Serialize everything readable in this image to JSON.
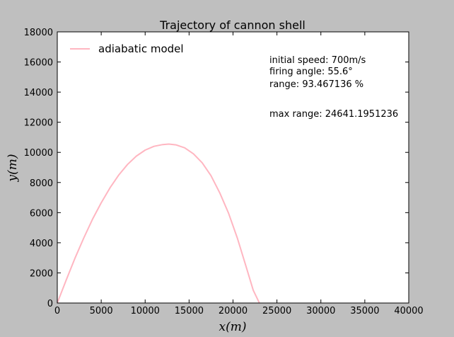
{
  "chart_data": {
    "type": "line",
    "title": "Trajectory of cannon shell",
    "xlabel": "x(m)",
    "ylabel": "y(m)",
    "xlim": [
      0,
      40000
    ],
    "ylim": [
      0,
      18000
    ],
    "xticks": [
      0,
      5000,
      10000,
      15000,
      20000,
      25000,
      30000,
      35000,
      40000
    ],
    "yticks": [
      0,
      2000,
      4000,
      6000,
      8000,
      10000,
      12000,
      14000,
      16000,
      18000
    ],
    "grid": false,
    "legend_position": "top-left",
    "series": [
      {
        "name": "adiabatic model",
        "color": "#ffb6c1",
        "x": [
          0,
          1000,
          2000,
          3000,
          4000,
          5000,
          6000,
          7000,
          8000,
          9000,
          10000,
          11000,
          12000,
          12700,
          13500,
          14500,
          15500,
          16500,
          17500,
          18500,
          19500,
          20500,
          21500,
          22300,
          23000
        ],
        "y": [
          0,
          1500,
          2950,
          4300,
          5550,
          6650,
          7650,
          8500,
          9200,
          9750,
          10150,
          10400,
          10520,
          10550,
          10500,
          10300,
          9900,
          9300,
          8450,
          7300,
          5950,
          4300,
          2400,
          850,
          0
        ]
      }
    ],
    "annotations": [
      "initial speed: 700m/s",
      "firing angle: 55.6°",
      "range: 93.467136 %",
      "max range: 24641.1951236"
    ]
  }
}
